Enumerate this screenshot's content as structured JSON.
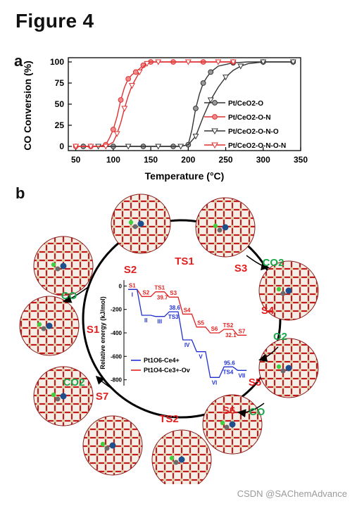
{
  "figure": {
    "title": "Figure 4",
    "watermark": "CSDN @SAChemAdvance"
  },
  "panel_a": {
    "label": "a",
    "chart_data": {
      "type": "line",
      "xlabel": "Temperature (°C)",
      "ylabel": "CO Conversion (%)",
      "xlim": [
        40,
        350
      ],
      "ylim": [
        -5,
        105
      ],
      "xticks": [
        50,
        100,
        150,
        200,
        250,
        300,
        350
      ],
      "yticks": [
        0,
        25,
        50,
        75,
        100
      ],
      "legend_position": "right-center",
      "series": [
        {
          "name": "Pt/CeO2-O",
          "color": "#333333",
          "marker": "circle-gray",
          "x": [
            60,
            80,
            100,
            120,
            140,
            160,
            180,
            190,
            200,
            205,
            210,
            215,
            220,
            225,
            230,
            240,
            260,
            280,
            300,
            320,
            340
          ],
          "y": [
            0,
            0,
            0,
            0,
            0,
            0,
            0,
            0,
            2,
            20,
            45,
            62,
            75,
            82,
            88,
            95,
            99,
            100,
            100,
            100,
            100
          ]
        },
        {
          "name": "Pt/CeO2-O-N",
          "color": "#e03030",
          "marker": "circle-red",
          "x": [
            50,
            60,
            70,
            80,
            90,
            95,
            100,
            105,
            110,
            115,
            120,
            125,
            130,
            135,
            140,
            145,
            150,
            160,
            180,
            200,
            220,
            240,
            260
          ],
          "y": [
            0,
            0,
            0,
            0,
            2,
            10,
            20,
            35,
            55,
            70,
            80,
            85,
            88,
            92,
            96,
            99,
            100,
            100,
            100,
            100,
            100,
            100,
            100
          ]
        },
        {
          "name": "Pt/CeO2-O-N-O",
          "color": "#333333",
          "marker": "triangle-open",
          "x": [
            80,
            100,
            120,
            140,
            160,
            180,
            190,
            200,
            210,
            220,
            230,
            240,
            250,
            260,
            270,
            280,
            300,
            320,
            340
          ],
          "y": [
            0,
            0,
            0,
            0,
            0,
            0,
            0,
            2,
            12,
            35,
            55,
            70,
            82,
            90,
            95,
            98,
            100,
            100,
            100
          ]
        },
        {
          "name": "Pt/CeO2-O-N-O-N",
          "color": "#e03030",
          "marker": "triangle-open-red",
          "x": [
            50,
            60,
            70,
            80,
            90,
            100,
            105,
            110,
            115,
            120,
            125,
            130,
            135,
            140,
            145,
            150,
            160,
            180,
            200,
            220,
            240,
            260
          ],
          "y": [
            0,
            0,
            0,
            0,
            0,
            5,
            15,
            28,
            45,
            60,
            72,
            80,
            88,
            94,
            98,
            100,
            100,
            100,
            100,
            100,
            100,
            100
          ]
        }
      ]
    }
  },
  "panel_b": {
    "label": "b",
    "cycle_states": [
      "S1",
      "S2",
      "TS1",
      "S3",
      "S4",
      "S5",
      "S6",
      "TS2",
      "S7"
    ],
    "molecules": {
      "co_top": "CO",
      "co2_top": "CO2",
      "o2_right": "O2",
      "co_bottom": "CO",
      "co2_left": "CO2"
    },
    "inner_chart": {
      "ylabel": "Relative energy (kJ/mol)",
      "yticks": [
        0,
        -200,
        -400,
        -600,
        -800
      ],
      "ylim": [
        -850,
        50
      ],
      "red_series": {
        "name": "Pt1O4-Ce3+-Ov",
        "steps": [
          "S1",
          "S2",
          "TS1",
          "S3",
          "S4",
          "S5",
          "S6",
          "TS2",
          "S7"
        ],
        "energies": [
          -30,
          -90,
          -50,
          -95,
          -240,
          -350,
          -400,
          -370,
          -420
        ],
        "barrier_labels": [
          {
            "text": "39.7"
          },
          {
            "text": "32.1"
          }
        ]
      },
      "blue_series": {
        "name": "Pt1O6-Ce4+",
        "steps": [
          "I",
          "II",
          "III",
          "TS3",
          "IV",
          "V",
          "VI",
          "TS4",
          "VII"
        ],
        "energies": [
          -30,
          -250,
          -260,
          -220,
          -460,
          -560,
          -780,
          -690,
          -720
        ],
        "barrier_labels": [
          {
            "text": "38.6"
          },
          {
            "text": "95.6"
          }
        ]
      }
    }
  }
}
